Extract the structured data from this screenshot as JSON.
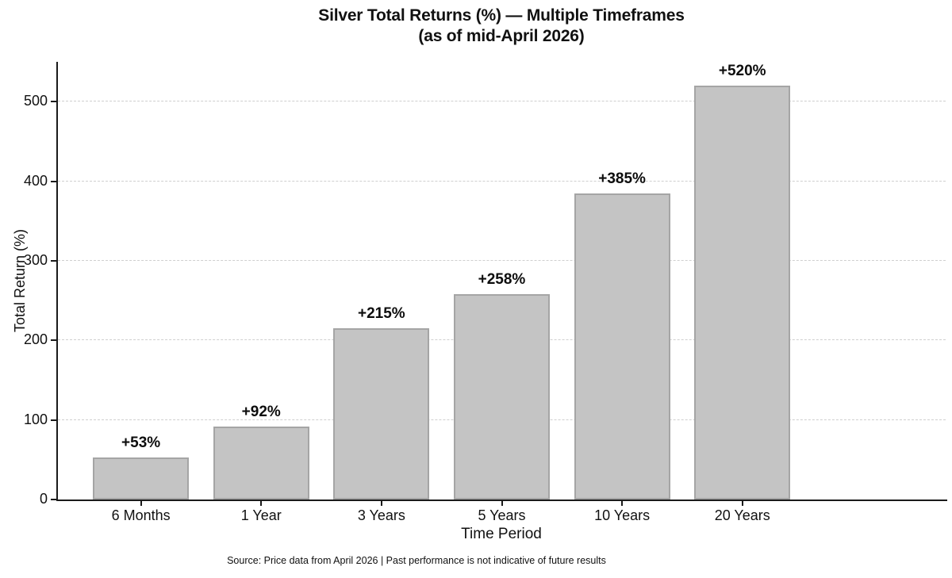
{
  "title": {
    "line1": "Silver Total Returns (%) — Multiple Timeframes",
    "line2": "(as of mid-April 2026)"
  },
  "source": "Source: Price data from April 2026 | Past performance is not indicative of future results",
  "chart_data": {
    "type": "bar",
    "title": "Silver Total Returns (%) — Multiple Timeframes (as of mid-April 2026)",
    "categories": [
      "6 Months",
      "1 Year",
      "3 Years",
      "5 Years",
      "10 Years",
      "20 Years"
    ],
    "values": [
      53,
      92,
      215,
      258,
      385,
      520
    ],
    "bar_labels": [
      "+53%",
      "+92%",
      "+215%",
      "+258%",
      "+385%",
      "+520%"
    ],
    "xlabel": "Time Period",
    "ylabel": "Total Return (%)",
    "ylim": [
      0,
      550
    ],
    "yticks": [
      0,
      100,
      200,
      300,
      400,
      500
    ],
    "grid": "horizontal dashed, behind bars",
    "legend": "none",
    "colors": {
      "bar_fill": "#c4c4c4",
      "bar_edge": "#a5a5a5",
      "grid": "#cfcfcf",
      "axis": "#1a1a1a",
      "text": "#111111",
      "background": "#ffffff"
    }
  }
}
